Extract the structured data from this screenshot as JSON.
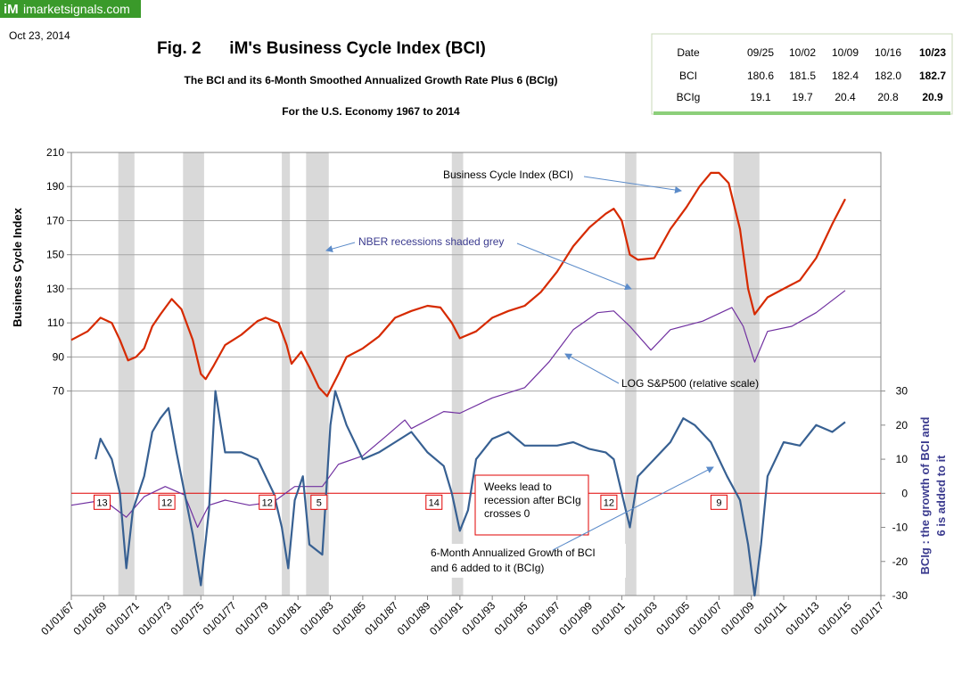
{
  "logo": {
    "mark": "iM",
    "site": "imarketsignals.com"
  },
  "date": "Oct 23, 2014",
  "table": {
    "header": [
      "Date",
      "09/25",
      "10/02",
      "10/09",
      "10/16",
      "10/23"
    ],
    "rows": [
      [
        "BCI",
        "180.6",
        "181.5",
        "182.4",
        "182.0",
        "182.7"
      ],
      [
        "BCIg",
        "19.1",
        "19.7",
        "20.4",
        "20.8",
        "20.9"
      ]
    ]
  },
  "chart_data": {
    "type": "line",
    "title": "Fig. 2      iM's Business Cycle Index (BCI)",
    "subtitle": "The BCI and its 6-Month Smoothed Annualized Growth Rate Plus 6 (BCIg)",
    "subtitle2": "For the U.S. Economy 1967  to 2014",
    "ylabel": "Business  Cycle  Index",
    "y2label": [
      "BCIg :  the growth of BCI and",
      "6 is added to it"
    ],
    "xlim": [
      1967,
      2017
    ],
    "xticks": [
      {
        "value": 1967,
        "label": "01/01/67"
      },
      {
        "value": 1969,
        "label": "01/01/69"
      },
      {
        "value": 1971,
        "label": "01/01/71"
      },
      {
        "value": 1973,
        "label": "01/01/73"
      },
      {
        "value": 1975,
        "label": "01/01/75"
      },
      {
        "value": 1977,
        "label": "01/01/77"
      },
      {
        "value": 1979,
        "label": "01/01/79"
      },
      {
        "value": 1981,
        "label": "01/01/81"
      },
      {
        "value": 1983,
        "label": "01/01/83"
      },
      {
        "value": 1985,
        "label": "01/01/85"
      },
      {
        "value": 1987,
        "label": "01/01/87"
      },
      {
        "value": 1989,
        "label": "01/01/89"
      },
      {
        "value": 1991,
        "label": "01/01/91"
      },
      {
        "value": 1993,
        "label": "01/01/93"
      },
      {
        "value": 1995,
        "label": "01/01/95"
      },
      {
        "value": 1997,
        "label": "01/01/97"
      },
      {
        "value": 1999,
        "label": "01/01/99"
      },
      {
        "value": 2001,
        "label": "01/01/01"
      },
      {
        "value": 2003,
        "label": "01/01/03"
      },
      {
        "value": 2005,
        "label": "01/01/05"
      },
      {
        "value": 2007,
        "label": "01/01/07"
      },
      {
        "value": 2009,
        "label": "01/01/09"
      },
      {
        "value": 2011,
        "label": "01/01/11"
      },
      {
        "value": 2013,
        "label": "01/01/13"
      },
      {
        "value": 2015,
        "label": "01/01/15"
      },
      {
        "value": 2017,
        "label": "01/01/17"
      }
    ],
    "ylim": [
      -50,
      210
    ],
    "yticks": [
      70,
      90,
      110,
      130,
      150,
      170,
      190,
      210
    ],
    "y2lim": [
      -30,
      100
    ],
    "y2ticks": [
      -30,
      -20,
      -10,
      0,
      10,
      20,
      30
    ],
    "grid": true,
    "zero_line_color": "#e00000",
    "recessions": [
      [
        1969.9,
        1970.9
      ],
      [
        1973.9,
        1975.2
      ],
      [
        1980.0,
        1980.5
      ],
      [
        1981.5,
        1982.9
      ],
      [
        1990.5,
        1991.2
      ],
      [
        2001.2,
        2001.9
      ],
      [
        2007.9,
        2009.5
      ]
    ],
    "lead_labels": [
      {
        "value": 13,
        "x": 1968.9
      },
      {
        "value": 12,
        "x": 1972.9
      },
      {
        "value": 12,
        "x": 1979.1
      },
      {
        "value": 5,
        "x": 1982.3
      },
      {
        "value": 14,
        "x": 1989.4
      },
      {
        "value": 12,
        "x": 2000.2
      },
      {
        "value": 9,
        "x": 2007.0
      }
    ],
    "annotations": {
      "bci": "Business Cycle Index (BCI)",
      "nber": "NBER recessions shaded grey",
      "sp": "LOG S&P500 (relative scale)",
      "lead": [
        "Weeks lead  to",
        "recession after BCIg",
        "crosses 0"
      ],
      "bcig": [
        "6-Month Annualized Growth of BCI",
        "and 6 added to it (BCIg)"
      ]
    },
    "series": [
      {
        "name": "LOG S&P500",
        "color": "#7030a0",
        "axis": "y",
        "x": [
          1967,
          1969,
          1970.4,
          1971.5,
          1972.8,
          1974,
          1974.8,
          1975.5,
          1976.5,
          1978,
          1979.5,
          1980.8,
          1982.5,
          1983.5,
          1985,
          1986.5,
          1987.6,
          1988,
          1990,
          1991,
          1993,
          1995,
          1996.5,
          1998,
          1999.5,
          2000.5,
          2001.5,
          2002.8,
          2004,
          2006,
          2007.8,
          2008.5,
          2009.2,
          2010,
          2011.5,
          2013,
          2014.8
        ],
        "values": [
          3,
          6,
          -4,
          8,
          14,
          9,
          -10,
          3,
          6,
          3,
          5,
          14,
          14,
          27,
          32,
          44,
          53,
          48,
          58,
          57,
          66,
          72,
          87,
          106,
          116,
          117,
          108,
          94,
          106,
          111,
          119,
          108,
          87,
          105,
          108,
          116,
          129
        ]
      },
      {
        "name": "BCI",
        "color": "#d62a00",
        "axis": "y",
        "x": [
          1967,
          1968,
          1968.8,
          1969.5,
          1970,
          1970.5,
          1971,
          1971.5,
          1972,
          1972.5,
          1973.2,
          1973.8,
          1974.5,
          1975,
          1975.3,
          1975.8,
          1976.5,
          1977.5,
          1978.5,
          1979,
          1979.8,
          1980.3,
          1980.6,
          1981.2,
          1981.7,
          1982.3,
          1982.8,
          1983.5,
          1984,
          1985,
          1986,
          1987,
          1988,
          1989,
          1989.8,
          1990.5,
          1991,
          1992,
          1993,
          1994,
          1995,
          1996,
          1997,
          1998,
          1999,
          2000,
          2000.5,
          2001,
          2001.5,
          2002,
          2003,
          2004,
          2005,
          2005.8,
          2006.5,
          2007,
          2007.6,
          2008.3,
          2008.8,
          2009.2,
          2010,
          2011,
          2012,
          2013,
          2014,
          2014.8
        ],
        "values": [
          100,
          105,
          113,
          110,
          100,
          88,
          90,
          95,
          108,
          115,
          124,
          118,
          100,
          80,
          77,
          85,
          97,
          103,
          111,
          113,
          110,
          97,
          86,
          93,
          84,
          72,
          67,
          80,
          90,
          95,
          102,
          113,
          117,
          120,
          119,
          110,
          101,
          105,
          113,
          117,
          120,
          128,
          140,
          155,
          166,
          174,
          177,
          170,
          150,
          147,
          148,
          165,
          178,
          190,
          198,
          198,
          192,
          165,
          130,
          115,
          125,
          130,
          135,
          148,
          168,
          182.7
        ]
      },
      {
        "name": "BCIg",
        "color": "#376092",
        "axis": "y2",
        "x": [
          1968.5,
          1968.8,
          1969.5,
          1970,
          1970.4,
          1970.8,
          1971.5,
          1972,
          1972.5,
          1973,
          1973.5,
          1974,
          1974.5,
          1975,
          1975.5,
          1975.9,
          1976.5,
          1977.5,
          1978.5,
          1979.5,
          1980,
          1980.4,
          1980.8,
          1981.3,
          1981.7,
          1982.5,
          1983,
          1983.3,
          1984,
          1985,
          1986,
          1987,
          1988,
          1989,
          1990,
          1990.5,
          1991,
          1991.5,
          1992,
          1993,
          1994,
          1995,
          1996,
          1997,
          1998,
          1999,
          2000,
          2000.5,
          2001,
          2001.5,
          2002,
          2003,
          2004,
          2004.8,
          2005.5,
          2006.5,
          2007.5,
          2008.3,
          2008.8,
          2009.2,
          2009.6,
          2010,
          2011,
          2012,
          2013,
          2014,
          2014.8
        ],
        "values": [
          10,
          16,
          10,
          0,
          -22,
          -5,
          5,
          18,
          22,
          25,
          12,
          0,
          -12,
          -27,
          -5,
          30,
          12,
          12,
          10,
          0,
          -10,
          -22,
          -2,
          5,
          -15,
          -18,
          20,
          30,
          20,
          10,
          12,
          15,
          18,
          12,
          8,
          0,
          -11,
          -5,
          10,
          16,
          18,
          14,
          14,
          14,
          15,
          13,
          12,
          10,
          0,
          -10,
          5,
          10,
          15,
          22,
          20,
          15,
          5,
          -2,
          -15,
          -30,
          -15,
          5,
          15,
          14,
          20,
          18,
          20.9
        ]
      }
    ]
  }
}
